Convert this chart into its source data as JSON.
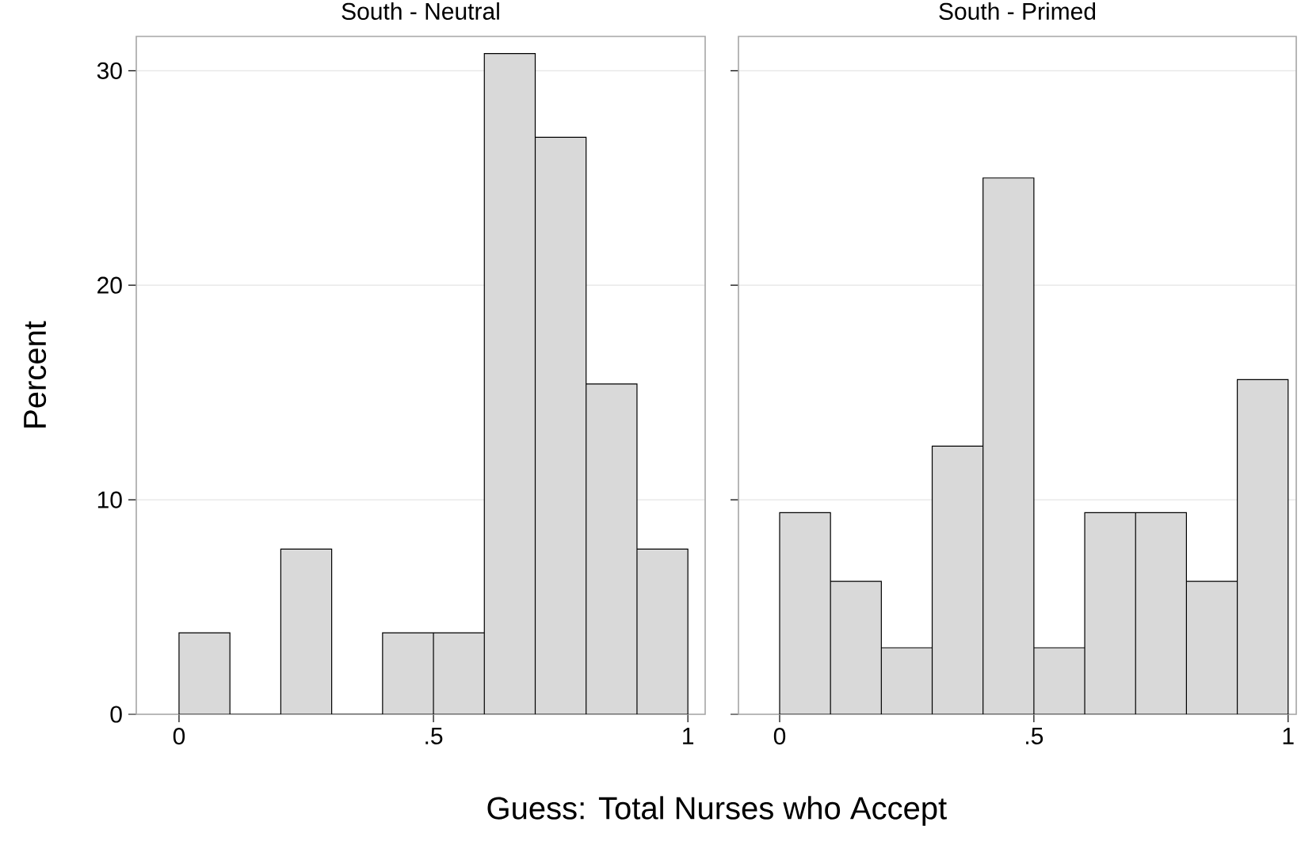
{
  "chart_data": [
    {
      "type": "histogram",
      "title": "South - Neutral",
      "ylabel": "Percent",
      "xlabel": "Guess: Total Nurses who Accept",
      "bins": [
        0,
        0.1,
        0.2,
        0.3,
        0.4,
        0.5,
        0.6,
        0.7,
        0.8,
        0.9,
        1.0
      ],
      "values": [
        3.8,
        0,
        7.7,
        0,
        3.8,
        3.8,
        30.8,
        26.9,
        15.4,
        7.7
      ],
      "color": "#d9d9d9",
      "xlim": [
        -0.084,
        1.034
      ],
      "ylim": [
        0,
        31.6
      ],
      "xticks": [
        0,
        {
          "value": 0.5,
          "label": ".5"
        },
        1
      ],
      "yticks": [
        0,
        10,
        20,
        30
      ],
      "grid": "y"
    },
    {
      "type": "histogram",
      "title": "South - Primed",
      "bins": [
        0,
        0.1,
        0.2,
        0.3,
        0.4,
        0.5,
        0.6,
        0.7,
        0.8,
        0.9,
        1.0
      ],
      "values": [
        9.4,
        6.2,
        3.1,
        12.5,
        25,
        3.1,
        9.4,
        9.4,
        6.2,
        15.6
      ],
      "color": "#d9d9d9",
      "xlim": [
        -0.081,
        1.016
      ],
      "ylim": [
        0,
        31.6
      ],
      "xticks": [
        0,
        {
          "value": 0.5,
          "label": ".5"
        },
        1
      ],
      "yticks": [
        0,
        10,
        20,
        30
      ],
      "grid": "y",
      "tick_labels": "x"
    }
  ]
}
